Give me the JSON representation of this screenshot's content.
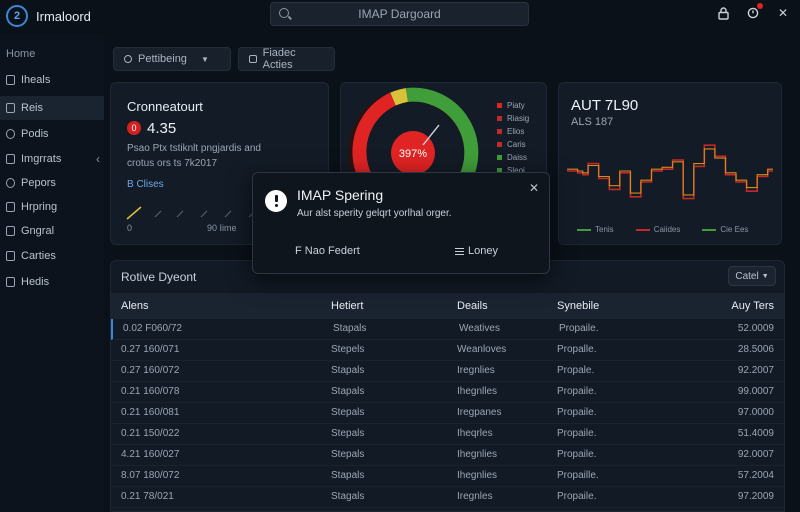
{
  "app": {
    "title": "Irmaloord",
    "logo_glyph": "2"
  },
  "search": {
    "placeholder": "IMAP Dargoard"
  },
  "topbar_icons": [
    "lock-icon",
    "bell-icon",
    "close-icon"
  ],
  "sidebar": {
    "section": "Home",
    "items": [
      {
        "label": "Iheals",
        "icon": "doc-icon"
      },
      {
        "label": "Reis",
        "icon": "doc-icon",
        "active": true
      },
      {
        "label": "Podis",
        "icon": "chat-icon"
      },
      {
        "label": "Imgrrats",
        "icon": "tag-icon"
      },
      {
        "label": "Pepors",
        "icon": "report-icon"
      },
      {
        "label": "Hrpring",
        "icon": "folder-icon"
      },
      {
        "label": "Gngral",
        "icon": "settings-icon"
      },
      {
        "label": "Carties",
        "icon": "box-icon"
      },
      {
        "label": "Hedis",
        "icon": "help-icon"
      }
    ]
  },
  "filters": [
    {
      "label": "Pettibeing",
      "icon": "search-icon",
      "dropdown": true
    },
    {
      "label": "Fiadec Acties",
      "icon": "calendar-icon",
      "dropdown": false
    }
  ],
  "card1": {
    "title": "Cronneatourt",
    "badge": "0",
    "value": "4.35",
    "desc": "Psao Ptx tstiknlt pngjardis and crotus ors ts 7k2017",
    "link": "B Clises",
    "foot_left": "0",
    "foot_right": "90 Iime"
  },
  "gauge": {
    "label": "397%",
    "value_pct": 39.7,
    "colors": {
      "red": "#e02424",
      "yellow": "#d8c23a",
      "green": "#3f9e3a"
    },
    "legend": [
      {
        "label": "Piaty",
        "color": "#e02424"
      },
      {
        "label": "Riasig",
        "color": "#c02a2a"
      },
      {
        "label": "Elios",
        "color": "#c02a2a"
      },
      {
        "label": "Caris",
        "color": "#c02a2a"
      },
      {
        "label": "Daiss",
        "color": "#3f9e3a"
      },
      {
        "label": "Sleoi",
        "color": "#3f9e3a"
      },
      {
        "label": "Paars",
        "color": "#c02a2a"
      }
    ]
  },
  "card3": {
    "title": "AUT 7L90",
    "subtitle": "ALS 187",
    "legend": [
      {
        "label": "Tenis",
        "color": "#3f9e3a"
      },
      {
        "label": "Caiides",
        "color": "#c02a2a"
      },
      {
        "label": "Cie Ees",
        "color": "#3f9e3a"
      }
    ]
  },
  "chart_data": [
    {
      "type": "line",
      "x": [
        1,
        2,
        3,
        4,
        5,
        6,
        7,
        8,
        9,
        10,
        11,
        12,
        13,
        14,
        15,
        16,
        17,
        18,
        19,
        20,
        21,
        22,
        23,
        24,
        25,
        26,
        27,
        28,
        29,
        30,
        31,
        32,
        33,
        34,
        35,
        36,
        37,
        38,
        39,
        40
      ],
      "series": [
        {
          "values": [
            50,
            50,
            48,
            46,
            58,
            58,
            42,
            42,
            30,
            30,
            48,
            48,
            22,
            22,
            38,
            38,
            50,
            50,
            52,
            52,
            62,
            62,
            20,
            20,
            55,
            55,
            78,
            78,
            66,
            66,
            46,
            46,
            38,
            38,
            28,
            28,
            44,
            44,
            50,
            50
          ],
          "color": "#c02a2a"
        },
        {
          "values": [
            52,
            52,
            50,
            48,
            56,
            56,
            44,
            44,
            34,
            34,
            50,
            50,
            26,
            26,
            40,
            40,
            52,
            52,
            54,
            54,
            60,
            60,
            24,
            24,
            58,
            58,
            74,
            74,
            64,
            64,
            48,
            48,
            40,
            40,
            32,
            32,
            46,
            46,
            52,
            52
          ],
          "color": "#d88a1a"
        }
      ],
      "ylim": [
        0,
        100
      ]
    }
  ],
  "table": {
    "title": "Rotive Dyeont",
    "button": "Catel",
    "columns": [
      "Alens",
      "Hetiert",
      "Deails",
      "Synebile",
      "Auy Ters"
    ],
    "rows": [
      [
        "0.02 F060/72",
        "Stapals",
        "Weatives",
        "Propaile.",
        "52.0009"
      ],
      [
        "0.27 160/071",
        "Stepels",
        "Weanloves",
        "Propalle.",
        "28.5006"
      ],
      [
        "0.27 160/072",
        "Stapals",
        "Iregnlies",
        "Propale.",
        "92.2007"
      ],
      [
        "0.21 160/078",
        "Stapals",
        "Ihegnlles",
        "Propaile.",
        "99.0007"
      ],
      [
        "0.21 160/081",
        "Stepals",
        "Iregpanes",
        "Propaile.",
        "97.0000"
      ],
      [
        "0.21 150/022",
        "Stepals",
        "Iheqrles",
        "Propaile.",
        "51.4009"
      ],
      [
        "4.21 160/027",
        "Stepals",
        "Ihegnlies",
        "Propaile.",
        "92.0007"
      ],
      [
        "8.07 180/072",
        "Stapals",
        "Ihegnlies",
        "Propaille.",
        "57.2004"
      ],
      [
        "0.21 78/021",
        "Stagals",
        "Iregnles",
        "Propaile.",
        "97.2009"
      ]
    ]
  },
  "modal": {
    "title": "IMAP Spering",
    "body": "Aur alst sperity gelqrt yorlhal orger.",
    "primary": "F Nao Federt",
    "secondary": "Loney"
  }
}
